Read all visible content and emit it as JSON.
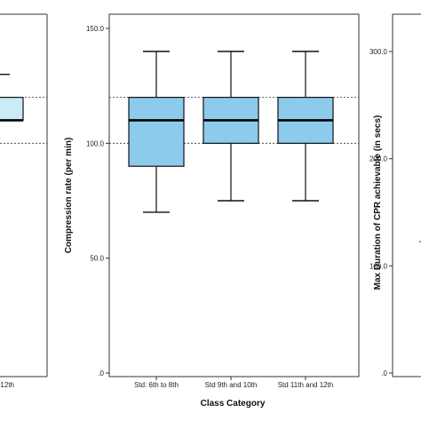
{
  "chart_data": [
    {
      "panel": "left-partial",
      "type": "box",
      "visible_tick_label": "nd 12th",
      "boxes": [
        {
          "q1": 110,
          "median": 110,
          "q3": 120,
          "whisker_high": 130
        }
      ],
      "reference_lines": [
        100,
        120
      ]
    },
    {
      "panel": "center",
      "type": "box",
      "xlabel": "Class Category",
      "ylabel": "Compression rate (per min)",
      "ylim": [
        0,
        150
      ],
      "yticks": [
        ".0",
        "50.0",
        "100.0",
        "150.0"
      ],
      "categories": [
        "Std: 6th to 8th",
        "Std 9th and 10th",
        "Std 11th and 12th"
      ],
      "boxes": [
        {
          "min": 70,
          "q1": 90,
          "median": 110,
          "q3": 120,
          "max": 140
        },
        {
          "min": 75,
          "q1": 100,
          "median": 110,
          "q3": 120,
          "max": 140
        },
        {
          "min": 75,
          "q1": 100,
          "median": 110,
          "q3": 120,
          "max": 140
        }
      ],
      "reference_lines": [
        100,
        120
      ],
      "box_color": "#8ccbec"
    },
    {
      "panel": "right-partial",
      "type": "box",
      "ylabel": "Max Duration of CPR achievable (in secs)",
      "ylim": [
        0,
        300
      ],
      "yticks": [
        ".0",
        "100.0",
        "200.0",
        "300.0"
      ]
    }
  ]
}
